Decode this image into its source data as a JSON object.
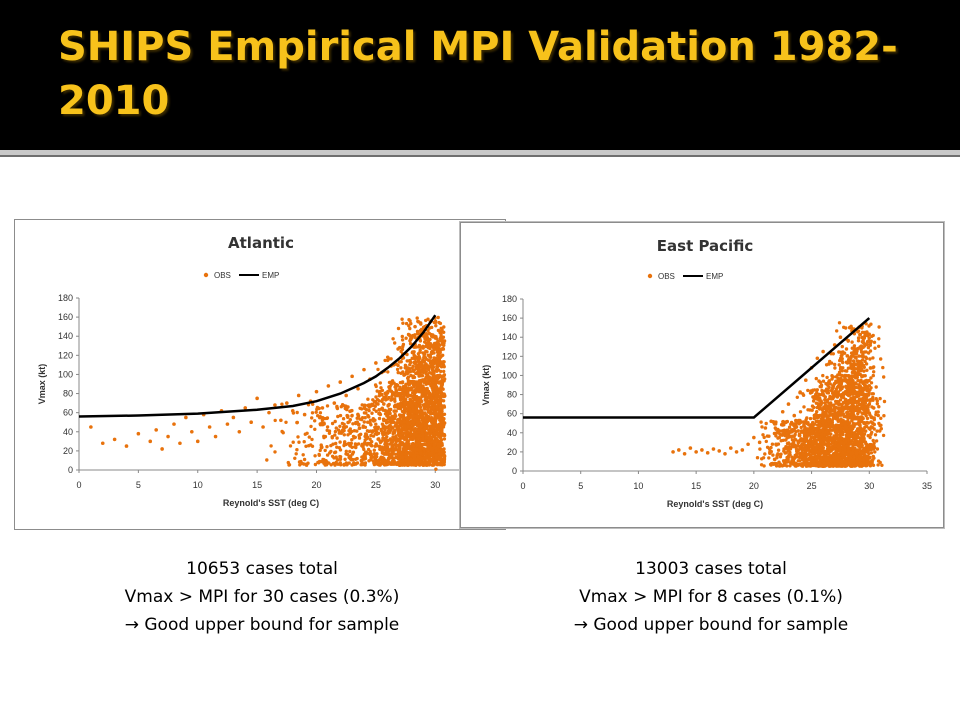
{
  "slide": {
    "title": "SHIPS Empirical MPI Validation 1982-2010",
    "colors": {
      "background": "#000000",
      "title": "#f7c21b",
      "obs": "#e8720c",
      "emp": "#000000"
    }
  },
  "panels": [
    {
      "id": "atlantic",
      "stats": {
        "total": "10653 cases total",
        "exceed": "Vmax > MPI for 30 cases (0.3%)",
        "conclusion": "→ Good upper bound for sample"
      }
    },
    {
      "id": "east-pacific",
      "stats": {
        "total": "13003 cases total",
        "exceed": "Vmax > MPI for 8 cases (0.1%)",
        "conclusion": "→ Good upper bound for sample"
      }
    }
  ],
  "chart_data": [
    {
      "type": "scatter",
      "title": "Atlantic",
      "xlabel": "Reynold's SST (deg C)",
      "ylabel": "Vmax (kt)",
      "xlim": [
        0,
        32
      ],
      "ylim": [
        0,
        180
      ],
      "xticks": [
        0,
        5,
        10,
        15,
        20,
        25,
        30
      ],
      "yticks": [
        0,
        20,
        40,
        60,
        80,
        100,
        120,
        140,
        160,
        180
      ],
      "legend": {
        "placement": "top-center",
        "entries": [
          "OBS",
          "EMP"
        ]
      },
      "series": [
        {
          "name": "OBS",
          "kind": "points",
          "points": [
            [
              1,
              45
            ],
            [
              2,
              28
            ],
            [
              3,
              32
            ],
            [
              4,
              25
            ],
            [
              5,
              38
            ],
            [
              6,
              30
            ],
            [
              6.5,
              42
            ],
            [
              7,
              22
            ],
            [
              7.5,
              35
            ],
            [
              8,
              48
            ],
            [
              8.5,
              28
            ],
            [
              9,
              55
            ],
            [
              9.5,
              40
            ],
            [
              10,
              30
            ],
            [
              10.5,
              58
            ],
            [
              11,
              45
            ],
            [
              11.5,
              35
            ],
            [
              12,
              62
            ],
            [
              12.5,
              48
            ],
            [
              13,
              55
            ],
            [
              13.5,
              40
            ],
            [
              14,
              65
            ],
            [
              14.5,
              50
            ],
            [
              15,
              75
            ],
            [
              15.5,
              45
            ],
            [
              16,
              60
            ],
            [
              16.5,
              68
            ],
            [
              17,
              52
            ],
            [
              17.5,
              70
            ],
            [
              18,
              62
            ],
            [
              18.5,
              78
            ],
            [
              19,
              58
            ],
            [
              19.5,
              72
            ],
            [
              20,
              82
            ],
            [
              20.5,
              65
            ],
            [
              21,
              88
            ],
            [
              21.5,
              70
            ],
            [
              22,
              92
            ],
            [
              22.5,
              78
            ],
            [
              23,
              98
            ],
            [
              23.5,
              85
            ],
            [
              24,
              105
            ],
            [
              24.5,
              95
            ],
            [
              25,
              112
            ],
            [
              25.5,
              102
            ],
            [
              26,
              118
            ],
            [
              26.5,
              110
            ],
            [
              27,
              128
            ],
            [
              27.5,
              122
            ],
            [
              28,
              138
            ],
            [
              28.3,
              150
            ],
            [
              28.6,
              155
            ],
            [
              29,
              145
            ],
            [
              29.3,
              130
            ],
            [
              29.6,
              118
            ],
            [
              30,
              95
            ],
            [
              30.3,
              70
            ],
            [
              30.5,
              50
            ],
            [
              27,
              5
            ],
            [
              28,
              8
            ],
            [
              24,
              15
            ],
            [
              26,
              10
            ]
          ],
          "cloud": [
            {
              "x": 24,
              "y": 40
            },
            {
              "x": 27,
              "y": 55
            },
            {
              "x": 28.5,
              "y": 70
            },
            {
              "x": 29.3,
              "y": 85
            },
            {
              "x": 29.7,
              "y": 110
            }
          ]
        },
        {
          "name": "EMP",
          "kind": "line",
          "x": [
            0,
            5,
            10,
            15,
            18,
            20,
            22,
            24,
            25,
            26,
            27,
            28,
            29,
            30
          ],
          "y": [
            56,
            57,
            59,
            63,
            67,
            72,
            80,
            91,
            98,
            107,
            117,
            129,
            144,
            162
          ]
        }
      ]
    },
    {
      "type": "scatter",
      "title": "East Pacific",
      "xlabel": "Reynold's SST (deg C)",
      "ylabel": "Vmax (kt)",
      "xlim": [
        0,
        35
      ],
      "ylim": [
        0,
        180
      ],
      "xticks": [
        0,
        5,
        10,
        15,
        20,
        25,
        30,
        35
      ],
      "yticks": [
        0,
        20,
        40,
        60,
        80,
        100,
        120,
        140,
        160,
        180
      ],
      "legend": {
        "placement": "top-center",
        "entries": [
          "OBS",
          "EMP"
        ]
      },
      "series": [
        {
          "name": "OBS",
          "kind": "points",
          "points": [
            [
              13,
              20
            ],
            [
              13.5,
              22
            ],
            [
              14,
              18
            ],
            [
              14.5,
              24
            ],
            [
              15,
              20
            ],
            [
              15.5,
              22
            ],
            [
              16,
              19
            ],
            [
              16.5,
              23
            ],
            [
              17,
              21
            ],
            [
              17.5,
              18
            ],
            [
              18,
              24
            ],
            [
              18.5,
              20
            ],
            [
              19,
              22
            ],
            [
              19.5,
              28
            ],
            [
              20,
              35
            ],
            [
              20.5,
              30
            ],
            [
              21,
              45
            ],
            [
              21.5,
              52
            ],
            [
              22,
              40
            ],
            [
              22.5,
              62
            ],
            [
              23,
              70
            ],
            [
              23.5,
              58
            ],
            [
              24,
              82
            ],
            [
              24.5,
              95
            ],
            [
              25,
              108
            ],
            [
              25.5,
              118
            ],
            [
              26,
              125
            ],
            [
              26.5,
              112
            ],
            [
              27,
              132
            ],
            [
              27.5,
              140
            ],
            [
              28,
              138
            ],
            [
              28.3,
              150
            ],
            [
              28.6,
              145
            ],
            [
              29,
              128
            ],
            [
              29.3,
              110
            ],
            [
              29.6,
              90
            ],
            [
              30,
              70
            ],
            [
              30.3,
              50
            ],
            [
              26,
              5
            ],
            [
              28,
              8
            ]
          ],
          "cloud": [
            {
              "x": 24,
              "y": 30
            },
            {
              "x": 26,
              "y": 50
            },
            {
              "x": 27.5,
              "y": 60
            },
            {
              "x": 28.5,
              "y": 75
            },
            {
              "x": 29.3,
              "y": 95
            }
          ]
        },
        {
          "name": "EMP",
          "kind": "line",
          "x": [
            0,
            20,
            30
          ],
          "y": [
            56,
            56,
            160
          ]
        }
      ]
    }
  ]
}
